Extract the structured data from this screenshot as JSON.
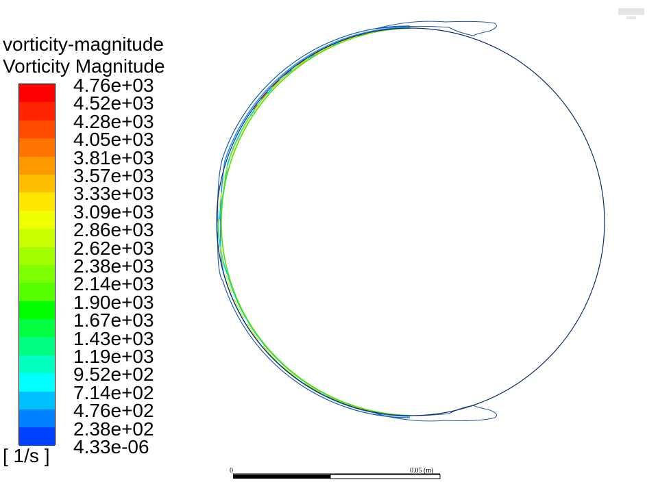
{
  "legend": {
    "title_line1": "vorticity-magnitude",
    "title_line2": "Vorticity Magnitude",
    "unit": "[ 1/s ]",
    "ticks": [
      "4.76e+03",
      "4.52e+03",
      "4.28e+03",
      "4.05e+03",
      "3.81e+03",
      "3.57e+03",
      "3.33e+03",
      "3.09e+03",
      "2.86e+03",
      "2.62e+03",
      "2.38e+03",
      "2.14e+03",
      "1.90e+03",
      "1.67e+03",
      "1.43e+03",
      "1.19e+03",
      "9.52e+02",
      "7.14e+02",
      "4.76e+02",
      "2.38e+02",
      "4.33e-06"
    ],
    "colors": [
      "#ff0000",
      "#ff2600",
      "#ff4d00",
      "#ff7300",
      "#ff9900",
      "#ffbf00",
      "#ffe600",
      "#f0ff00",
      "#c9ff00",
      "#a3ff00",
      "#7dff00",
      "#57ff00",
      "#00ff00",
      "#00ff40",
      "#00ff80",
      "#00ffbf",
      "#00ffff",
      "#00bfff",
      "#0080ff",
      "#0040ff",
      "#0000ff"
    ]
  },
  "scale_bar": {
    "start_label": "0",
    "end_label": "0.05 (m)"
  },
  "logo_icon": "ansys-logo-icon"
}
